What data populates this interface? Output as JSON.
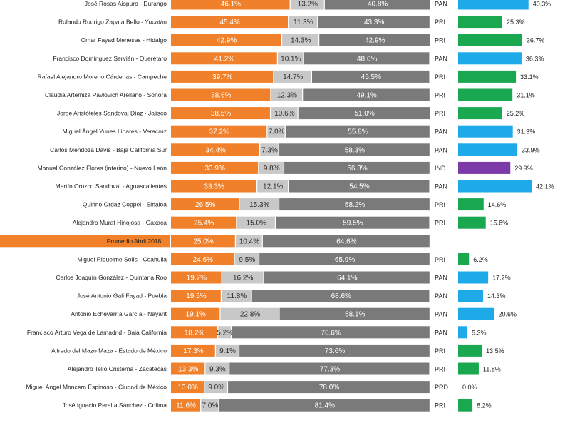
{
  "colors": {
    "approve": "#f0812a",
    "neutral": "#c8c8c8",
    "disapprove": "#7a7a7a",
    "PAN": "#1ea9e8",
    "PRI": "#19a74f",
    "IND": "#7b3aa8",
    "PRD": "#f5c400",
    "average_band": "#f0812a"
  },
  "chart_data": {
    "type": "bar",
    "title": "",
    "average": {
      "label": "Promedio Abril 2018",
      "values": [
        25.0,
        10.4,
        64.6
      ]
    },
    "stack_series": [
      {
        "key": "approve",
        "unit": "%"
      },
      {
        "key": "neutral",
        "unit": "%"
      },
      {
        "key": "disapprove",
        "unit": "%"
      }
    ],
    "rows": [
      {
        "name": "José Rosas Aispuro - Durango",
        "values": [
          46.1,
          13.2,
          40.8
        ],
        "party": "PAN",
        "vote": 40.3
      },
      {
        "name": "Rolando Rodrigo Zapata Bello - Yucatán",
        "values": [
          45.4,
          11.3,
          43.3
        ],
        "party": "PRI",
        "vote": 25.3
      },
      {
        "name": "Omar Fayad Meneses - Hidalgo",
        "values": [
          42.9,
          14.3,
          42.9
        ],
        "party": "PRI",
        "vote": 36.7
      },
      {
        "name": "Francisco Domínguez Servién - Querétaro",
        "values": [
          41.2,
          10.1,
          48.6
        ],
        "party": "PAN",
        "vote": 36.3
      },
      {
        "name": "Rafael Alejandro Moreno Cárdenas - Campeche",
        "values": [
          39.7,
          14.7,
          45.5
        ],
        "party": "PRI",
        "vote": 33.1
      },
      {
        "name": "Claudia Artemiza Pavlovich Arellano - Sonora",
        "values": [
          38.6,
          12.3,
          49.1
        ],
        "party": "PRI",
        "vote": 31.1
      },
      {
        "name": "Jorge Aristóteles Sandoval Díaz - Jalisco",
        "values": [
          38.5,
          10.6,
          51.0
        ],
        "party": "PRI",
        "vote": 25.2
      },
      {
        "name": "Miguel Ángel Yunes Linares - Veracruz",
        "values": [
          37.2,
          7.0,
          55.8
        ],
        "party": "PAN",
        "vote": 31.3
      },
      {
        "name": "Carlos Mendoza Davis - Baja California Sur",
        "values": [
          34.4,
          7.3,
          58.3
        ],
        "party": "PAN",
        "vote": 33.9
      },
      {
        "name": "Manuel González Flores (interino) - Nuevo León",
        "values": [
          33.9,
          9.8,
          56.3
        ],
        "party": "IND",
        "vote": 29.9
      },
      {
        "name": "Martín Orozco Sandoval - Aguascalientes",
        "values": [
          33.3,
          12.1,
          54.5
        ],
        "party": "PAN",
        "vote": 42.1
      },
      {
        "name": "Quirino Ordaz Coppel - Sinaloa",
        "values": [
          26.5,
          15.3,
          58.2
        ],
        "party": "PRI",
        "vote": 14.6
      },
      {
        "name": "Alejandro Murat Hinojosa - Oaxaca",
        "values": [
          25.4,
          15.0,
          59.5
        ],
        "party": "PRI",
        "vote": 15.8
      },
      {
        "name": "Miguel Riquelme Solís - Coahuila",
        "values": [
          24.6,
          9.5,
          65.9
        ],
        "party": "PRI",
        "vote": 6.2
      },
      {
        "name": "Carlos Joaquín González - Quintana Roo",
        "values": [
          19.7,
          16.2,
          64.1
        ],
        "party": "PAN",
        "vote": 17.2
      },
      {
        "name": "José Antonio Gali Fayad - Puebla",
        "values": [
          19.5,
          11.8,
          68.6
        ],
        "party": "PAN",
        "vote": 14.3
      },
      {
        "name": "Antonio Echevarría García - Nayarit",
        "values": [
          19.1,
          22.8,
          58.1
        ],
        "party": "PAN",
        "vote": 20.6
      },
      {
        "name": "Francisco Arturo Vega de Lamadrid - Baja California",
        "values": [
          18.2,
          5.2,
          76.6
        ],
        "party": "PAN",
        "vote": 5.3
      },
      {
        "name": "Alfredo del Mazo Maza - Estado de México",
        "values": [
          17.3,
          9.1,
          73.6
        ],
        "party": "PRI",
        "vote": 13.5
      },
      {
        "name": "Alejandro Tello Cristerna - Zacatecas",
        "values": [
          13.3,
          9.3,
          77.3
        ],
        "party": "PRI",
        "vote": 11.8
      },
      {
        "name": "Miguel Ángel Mancera Espinosa - Ciudad de México",
        "values": [
          13.0,
          9.0,
          78.0
        ],
        "party": "PRD",
        "vote": 0.0
      },
      {
        "name": "José Ignacio Peralta Sánchez - Colima",
        "values": [
          11.6,
          7.0,
          81.4
        ],
        "party": "PRI",
        "vote": 8.2
      }
    ]
  }
}
